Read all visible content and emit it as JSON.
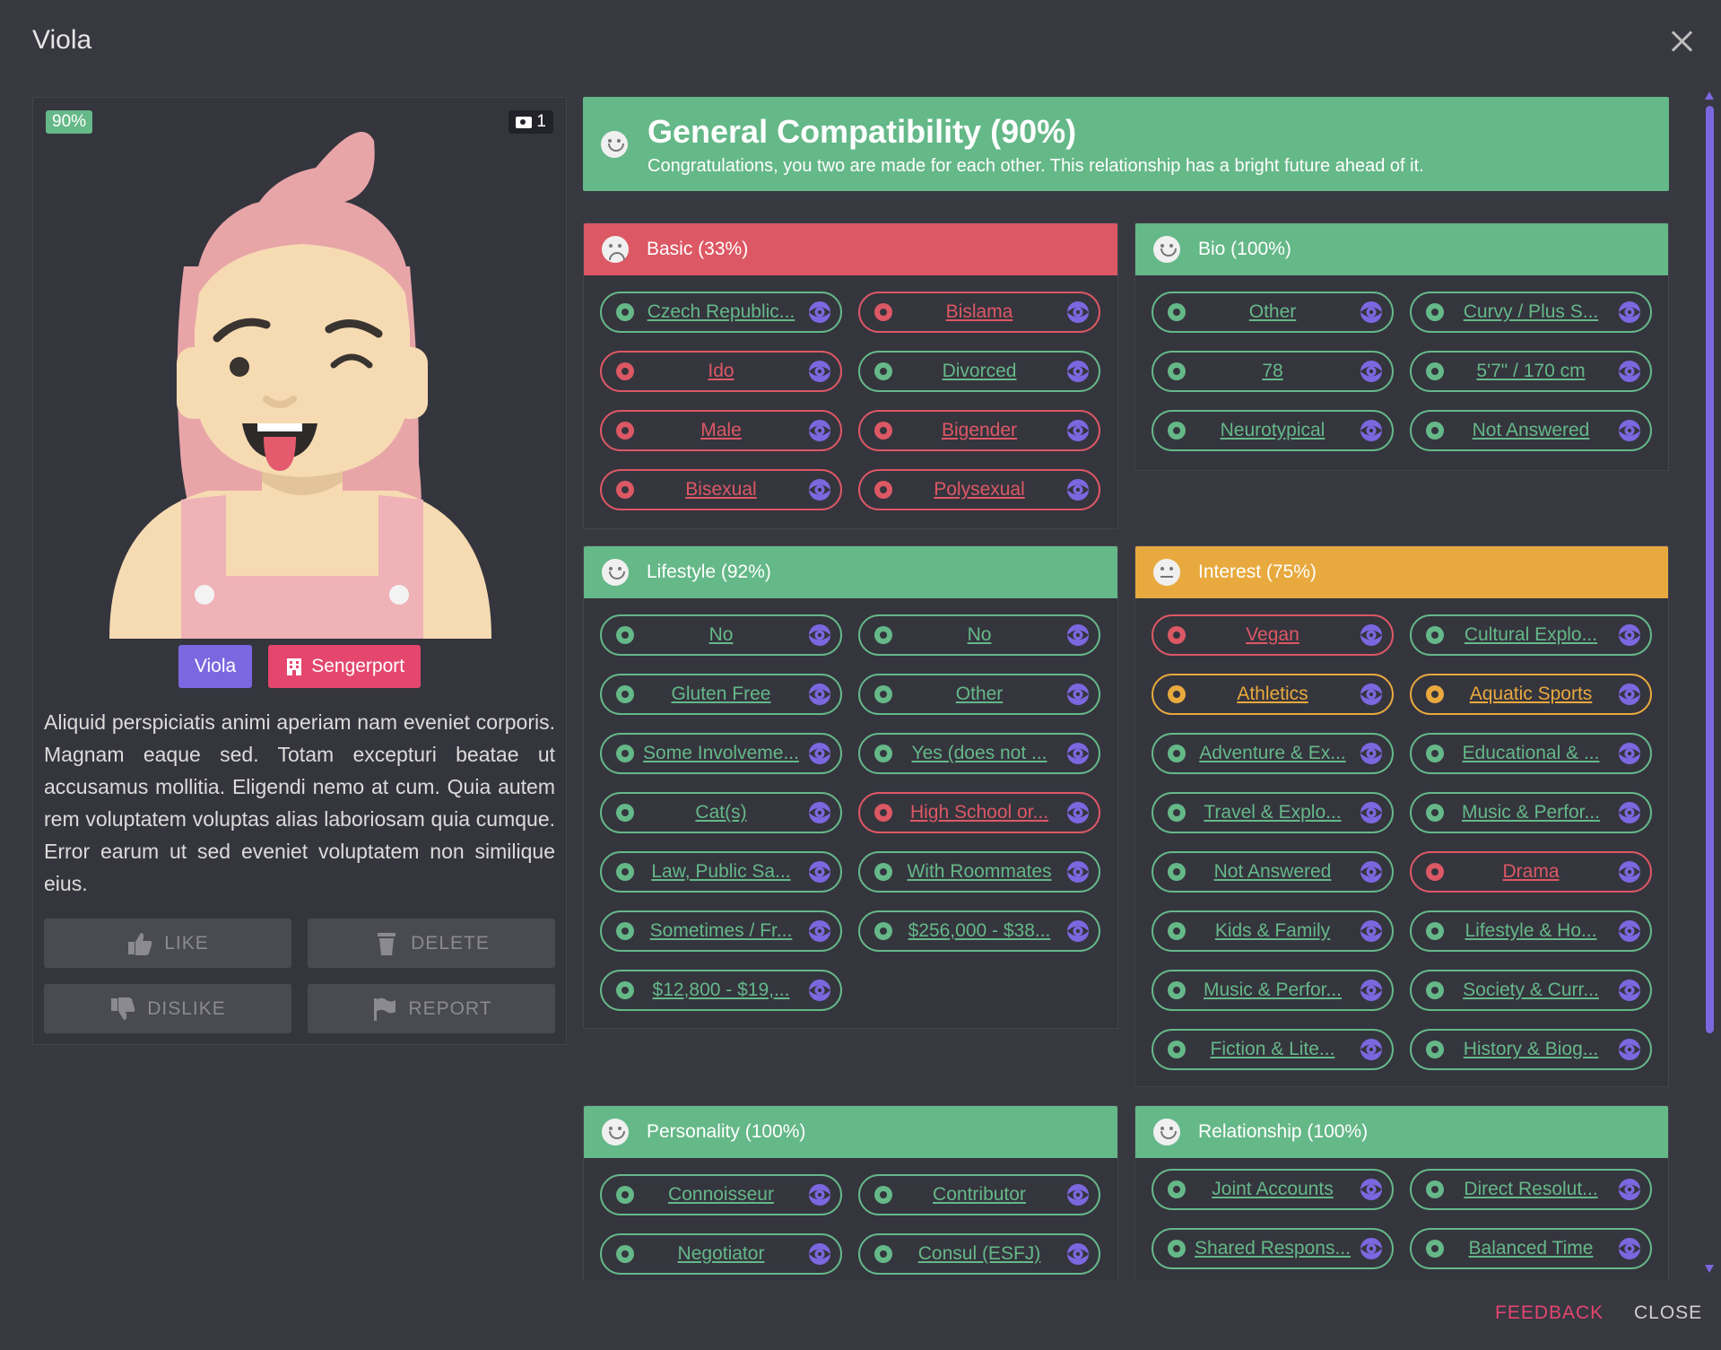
{
  "window": {
    "title": "Viola"
  },
  "profile": {
    "match_percent": "90%",
    "photo_count": "1",
    "name_chip": "Viola",
    "location_chip": "Sengerport",
    "bio": "Aliquid perspiciatis animi aperiam nam eveniet corporis. Magnam eaque sed. Totam excepturi beatae ut accusamus mollitia. Eligendi nemo at cum. Quia autem rem voluptatem voluptas alias laboriosam quia cumque. Error earum ut sed eveniet voluptatem non similique eius.",
    "buttons": {
      "like": "LIKE",
      "delete": "DELETE",
      "dislike": "DISLIKE",
      "report": "REPORT"
    }
  },
  "general": {
    "title": "General Compatibility (90%)",
    "subtitle": "Congratulations, you two are made for each other. This relationship has a bright future ahead of it."
  },
  "sections": {
    "basic": {
      "title": "Basic (33%)",
      "items": [
        {
          "icon": "map-pin-icon",
          "text": "Czech Republic...",
          "status": "green"
        },
        {
          "icon": "language-icon",
          "text": "Bislama",
          "status": "red"
        },
        {
          "icon": "language-icon",
          "text": "Ido",
          "status": "red"
        },
        {
          "icon": "heart-icon",
          "text": "Divorced",
          "status": "green"
        },
        {
          "icon": "venus-icon",
          "text": "Male",
          "status": "red"
        },
        {
          "icon": "venus-icon",
          "text": "Bigender",
          "status": "red"
        },
        {
          "icon": "venus-icon",
          "text": "Bisexual",
          "status": "red"
        },
        {
          "icon": "venus-icon",
          "text": "Polysexual",
          "status": "red"
        }
      ]
    },
    "bio": {
      "title": "Bio (100%)",
      "items": [
        {
          "icon": "globe-icon",
          "text": "Other",
          "status": "green"
        },
        {
          "icon": "weight-icon",
          "text": "Curvy / Plus S...",
          "status": "green"
        },
        {
          "icon": "cake-icon",
          "text": "78",
          "status": "green"
        },
        {
          "icon": "ruler-icon",
          "text": "5'7\" / 170 cm",
          "status": "green"
        },
        {
          "icon": "brain-icon",
          "text": "Neurotypical",
          "status": "green"
        },
        {
          "icon": "wheelchair-icon",
          "text": "Not Answered",
          "status": "green"
        }
      ]
    },
    "lifestyle": {
      "title": "Lifestyle (92%)",
      "items": [
        {
          "icon": "glasses-icon",
          "text": "No",
          "status": "green"
        },
        {
          "icon": "smoking-icon",
          "text": "No",
          "status": "green"
        },
        {
          "icon": "utensils-icon",
          "text": "Gluten Free",
          "status": "green"
        },
        {
          "icon": "praying-hands-icon",
          "text": "Other",
          "status": "green"
        },
        {
          "icon": "hands-people-icon",
          "text": "Some Involveme...",
          "status": "green"
        },
        {
          "icon": "child-icon",
          "text": "Yes (does not ...",
          "status": "green"
        },
        {
          "icon": "paw-icon",
          "text": "Cat(s)",
          "status": "green"
        },
        {
          "icon": "graduation-cap-icon",
          "text": "High School or...",
          "status": "red"
        },
        {
          "icon": "briefcase-icon",
          "text": "Law, Public Sa...",
          "status": "green"
        },
        {
          "icon": "house-user-icon",
          "text": "With Roommates",
          "status": "green"
        },
        {
          "icon": "plane-icon",
          "text": "Sometimes / Fr...",
          "status": "green"
        },
        {
          "icon": "gem-icon",
          "text": "$256,000 - $38...",
          "status": "green"
        },
        {
          "icon": "money-bill-icon",
          "text": "$12,800 - $19,...",
          "status": "green"
        }
      ]
    },
    "interest": {
      "title": "Interest (75%)",
      "items": [
        {
          "icon": "pizza-icon",
          "text": "Vegan",
          "status": "red"
        },
        {
          "icon": "plane-departure-icon",
          "text": "Cultural Explo...",
          "status": "green"
        },
        {
          "icon": "swimmer-icon",
          "text": "Athletics",
          "status": "orange"
        },
        {
          "icon": "swimmer-icon",
          "text": "Aquatic Sports",
          "status": "orange"
        },
        {
          "icon": "swimmer-icon",
          "text": "Adventure & Ex...",
          "status": "green"
        },
        {
          "icon": "umbrella-beach-icon",
          "text": "Educational & ...",
          "status": "green"
        },
        {
          "icon": "umbrella-beach-icon",
          "text": "Travel & Explo...",
          "status": "green"
        },
        {
          "icon": "umbrella-beach-icon",
          "text": "Music & Perfor...",
          "status": "green"
        },
        {
          "icon": "music-icon",
          "text": "Not Answered",
          "status": "green"
        },
        {
          "icon": "film-icon",
          "text": "Drama",
          "status": "red"
        },
        {
          "icon": "tv-icon",
          "text": "Kids & Family",
          "status": "green"
        },
        {
          "icon": "tv-icon",
          "text": "Lifestyle & Ho...",
          "status": "green"
        },
        {
          "icon": "tv-icon",
          "text": "Music & Perfor...",
          "status": "green"
        },
        {
          "icon": "book-reader-icon",
          "text": "Society & Curr...",
          "status": "green"
        },
        {
          "icon": "book-reader-icon",
          "text": "Fiction & Lite...",
          "status": "green"
        },
        {
          "icon": "book-reader-icon",
          "text": "History & Biog...",
          "status": "green"
        }
      ]
    },
    "personality": {
      "title": "Personality (100%)",
      "items": [
        {
          "icon": "wallet-icon",
          "text": "Connoisseur",
          "status": "green"
        },
        {
          "icon": "hand-holding-dollar-icon",
          "text": "Contributor",
          "status": "green"
        },
        {
          "icon": "people-arrows-icon",
          "text": "Negotiator",
          "status": "green"
        },
        {
          "icon": "user-icon",
          "text": "Consul (ESFJ)",
          "status": "green"
        }
      ]
    },
    "relationship": {
      "title": "Relationship (100%)",
      "items": [
        {
          "icon": "money-bill-wave-icon",
          "text": "Joint Accounts",
          "status": "green"
        },
        {
          "icon": "handshake-icon",
          "text": "Direct Resolut...",
          "status": "green"
        },
        {
          "icon": "broom-icon",
          "text": "Shared Respons...",
          "status": "green"
        },
        {
          "icon": "people-arrows-icon",
          "text": "Balanced Time",
          "status": "green"
        }
      ]
    }
  },
  "footer": {
    "feedback": "FEEDBACK",
    "close": "CLOSE"
  },
  "colors": {
    "green": "#65b888",
    "red": "#dc5864",
    "orange": "#e8a93e",
    "purple": "#7b68e0",
    "pink": "#e4466e",
    "background": "#383841"
  }
}
